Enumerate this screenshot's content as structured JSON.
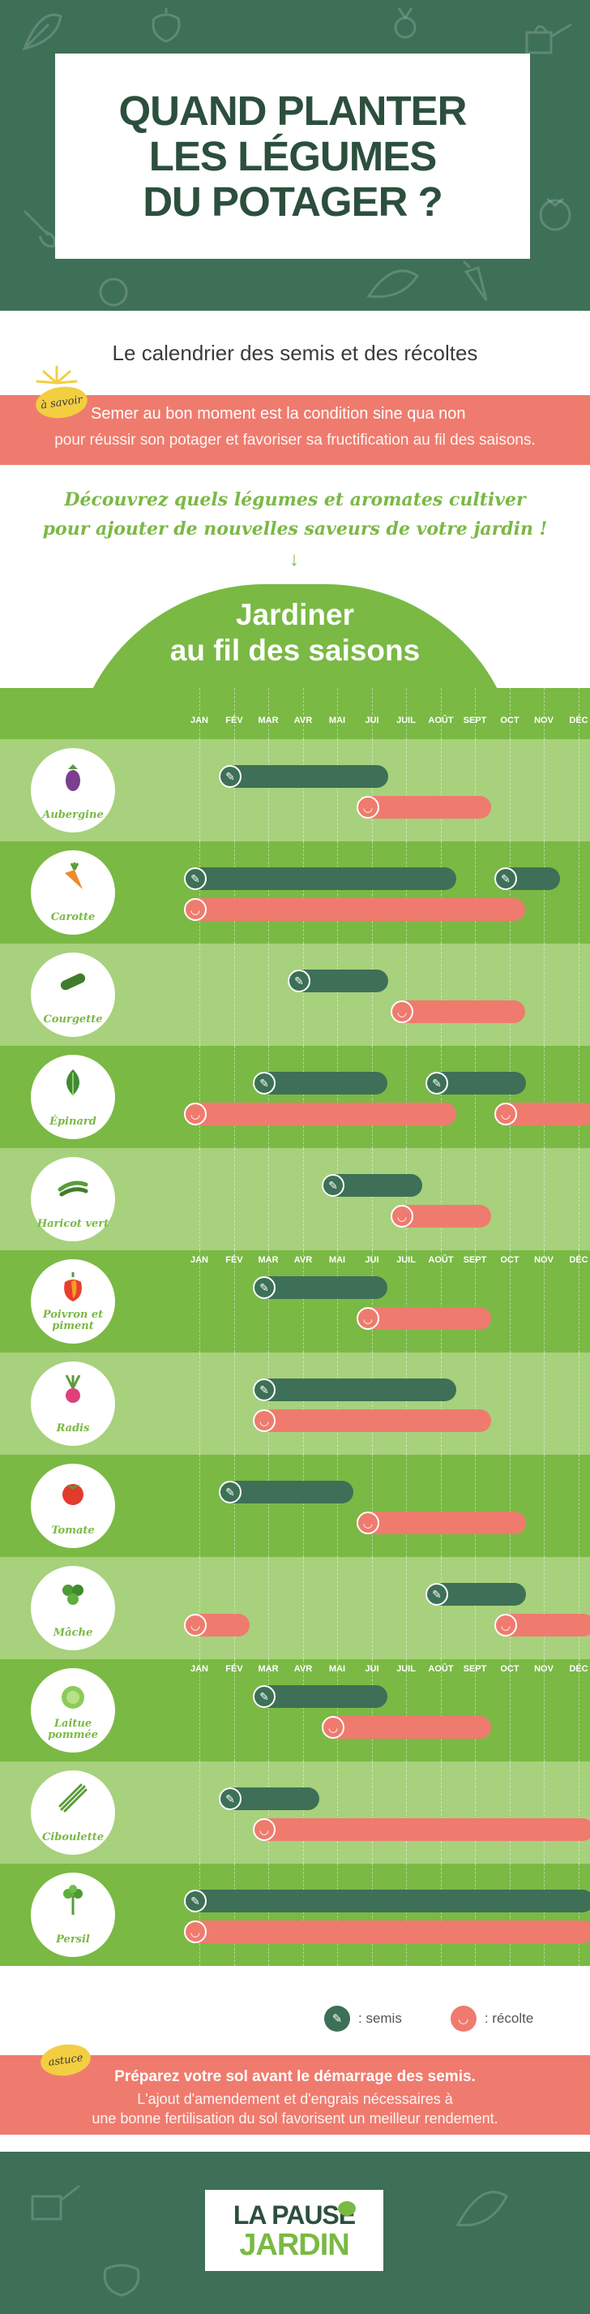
{
  "header": {
    "title_line1": "QUAND PLANTER",
    "title_line2": "LES LÉGUMES",
    "title_line3": "DU POTAGER ?"
  },
  "intro": {
    "subtitle": "Le calendrier des semis et des récoltes",
    "badge": "à savoir",
    "info_line1": "Semer au bon moment est la condition sine qua non",
    "info_line2": "pour réussir son potager et favoriser sa fructification au fil des saisons.",
    "discover_line1": "Découvrez quels légumes et aromates cultiver",
    "discover_line2": "pour ajouter de nouvelles saveurs de votre jardin !"
  },
  "calendar": {
    "title_line1": "Jardiner",
    "title_line2": "au fil des saisons",
    "months": [
      "JAN",
      "FÉV",
      "MAR",
      "AVR",
      "MAI",
      "JUI",
      "JUIL",
      "AOÛT",
      "SEPT",
      "OCT",
      "NOV",
      "DÉC"
    ],
    "vegetables": [
      {
        "name": "Aubergine",
        "icon": "eggplant-icon",
        "semis": [
          [
            2,
            6
          ]
        ],
        "recolte": [
          [
            6,
            9
          ]
        ]
      },
      {
        "name": "Carotte",
        "icon": "carrot-icon",
        "semis": [
          [
            1,
            8
          ],
          [
            10,
            11
          ]
        ],
        "recolte": [
          [
            1,
            10
          ]
        ]
      },
      {
        "name": "Courgette",
        "icon": "zucchini-icon",
        "semis": [
          [
            4,
            6
          ]
        ],
        "recolte": [
          [
            7,
            10
          ]
        ]
      },
      {
        "name": "Épinard",
        "icon": "spinach-icon",
        "semis": [
          [
            3,
            6
          ],
          [
            8,
            10
          ]
        ],
        "recolte": [
          [
            1,
            8
          ],
          [
            10,
            12
          ]
        ]
      },
      {
        "name": "Haricot vert",
        "icon": "green-bean-icon",
        "semis": [
          [
            5,
            7
          ]
        ],
        "recolte": [
          [
            7,
            9
          ]
        ]
      },
      {
        "name": "Poivron et piment",
        "icon": "pepper-icon",
        "semis": [
          [
            3,
            6
          ]
        ],
        "recolte": [
          [
            6,
            9
          ]
        ]
      },
      {
        "name": "Radis",
        "icon": "radish-icon",
        "semis": [
          [
            3,
            8
          ]
        ],
        "recolte": [
          [
            3,
            9
          ]
        ]
      },
      {
        "name": "Tomate",
        "icon": "tomato-icon",
        "semis": [
          [
            2,
            5
          ]
        ],
        "recolte": [
          [
            6,
            10
          ]
        ]
      },
      {
        "name": "Mâche",
        "icon": "lambs-lettuce-icon",
        "semis": [
          [
            8,
            10
          ]
        ],
        "recolte": [
          [
            1,
            2
          ],
          [
            10,
            12
          ]
        ]
      },
      {
        "name": "Laitue pommée",
        "icon": "lettuce-icon",
        "semis": [
          [
            3,
            6
          ]
        ],
        "recolte": [
          [
            5,
            9
          ]
        ]
      },
      {
        "name": "Ciboulette",
        "icon": "chives-icon",
        "semis": [
          [
            2,
            4
          ]
        ],
        "recolte": [
          [
            3,
            12
          ]
        ]
      },
      {
        "name": "Persil",
        "icon": "parsley-icon",
        "semis": [
          [
            1,
            12
          ]
        ],
        "recolte": [
          [
            1,
            12
          ]
        ]
      }
    ]
  },
  "legend": {
    "semis_label": ": semis",
    "recolte_label": ": récolte"
  },
  "tip": {
    "badge": "astuce",
    "line1": "Préparez votre sol avant le démarrage des semis.",
    "line2": "L'ajout d'amendement et d'engrais nécessaires à",
    "line3": "une bonne fertilisation du sol favorisent un meilleur rendement."
  },
  "footer": {
    "logo_line1": "LA PAUSE",
    "logo_line2": "JARDIN"
  },
  "colors": {
    "dark_green": "#3d7057",
    "light_green": "#7ab944",
    "salmon": "#ef7b6e",
    "yellow": "#f3ce41"
  }
}
